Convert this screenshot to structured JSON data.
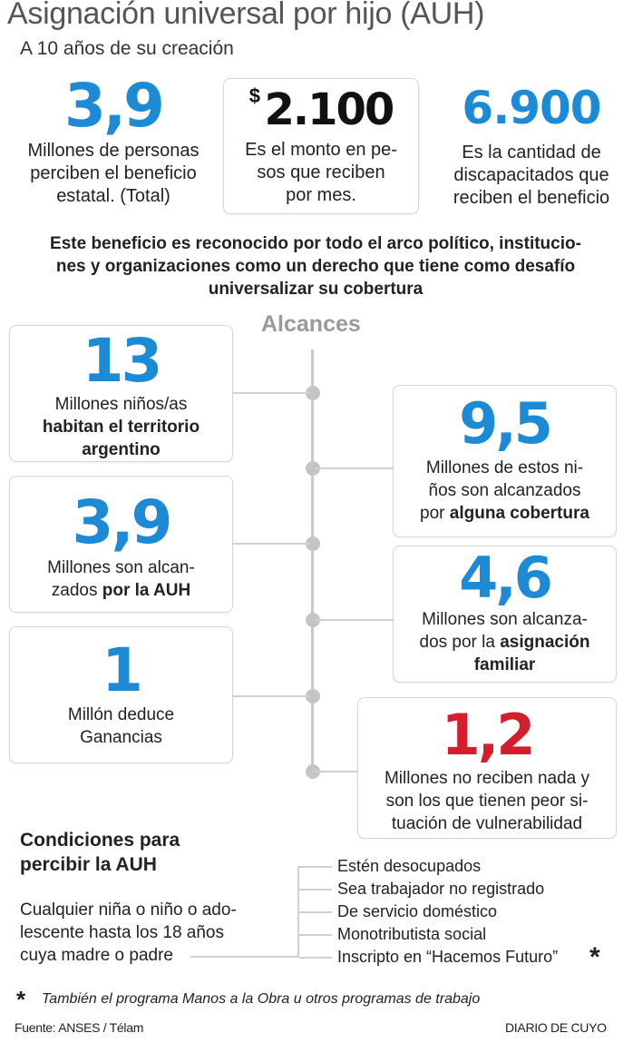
{
  "header": {
    "title": "Asignación universal por hijo (AUH)",
    "subtitle": "A 10 años de su creación"
  },
  "top_stats": [
    {
      "value": "3,9",
      "text_lines": [
        "Millones de personas",
        "perciben el beneficio",
        "estatal. (Total)"
      ]
    },
    {
      "currency": "$",
      "value": "2.100",
      "text_lines": [
        "Es el monto en pe-",
        "sos que reciben",
        "por mes."
      ]
    },
    {
      "value": "6.900",
      "text_lines": [
        "Es la cantidad de",
        "discapacitados que",
        "reciben el beneficio"
      ]
    }
  ],
  "intro_lines": [
    "Este beneficio es reconocido por todo el arco político, institucio-",
    "nes y organizaciones como un derecho que tiene como desafío",
    "universalizar su cobertura"
  ],
  "alcances": {
    "title": "Alcances",
    "cards": [
      {
        "value": "13",
        "line1": "Millones niños/as",
        "line2_bold": "habitan el territorio",
        "line3_bold": "argentino"
      },
      {
        "value": "9,5",
        "line1": "Millones de estos ni-",
        "line2": "ños son alcanzados",
        "line3_pre": "por ",
        "line3_bold": "alguna cobertura"
      },
      {
        "value": "3,9",
        "line1": "Millones son alcan-",
        "line2_pre": "zados ",
        "line2_bold": "por la AUH"
      },
      {
        "value": "4,6",
        "line1": "Millones son alcanza-",
        "line2_pre": "dos por la ",
        "line2_bold": "asignación",
        "line3_bold": "familiar"
      },
      {
        "value": "1",
        "line1": "Millón deduce",
        "line2": "Ganancias"
      },
      {
        "value": "1,2",
        "line1": "Millones no reciben nada y",
        "line2": "son los que tienen peor si-",
        "line3": "tuación de vulnerabilidad"
      }
    ]
  },
  "conditions": {
    "title_lines": [
      "Condiciones para",
      "percibir la AUH"
    ],
    "description_lines": [
      "Cualquier niña o niño o ado-",
      "lescente hasta los 18 años",
      "cuya madre o padre"
    ],
    "items": [
      "Estén desocupados",
      "Sea trabajador no registrado",
      "De servicio doméstico",
      "Monotributista social",
      "Inscripto en “Hacemos Futuro”"
    ],
    "asterisk": "*"
  },
  "footnote": {
    "asterisk": "*",
    "text": "También el programa Manos a la Obra u otros programas de trabajo"
  },
  "footer": {
    "source": "Fuente: ANSES / Télam",
    "brand": "DIARIO DE CUYO"
  },
  "colors": {
    "accent_blue": "#1d8ad6",
    "alert_red": "#d51e2d",
    "line_gray": "#c9c9c9"
  }
}
